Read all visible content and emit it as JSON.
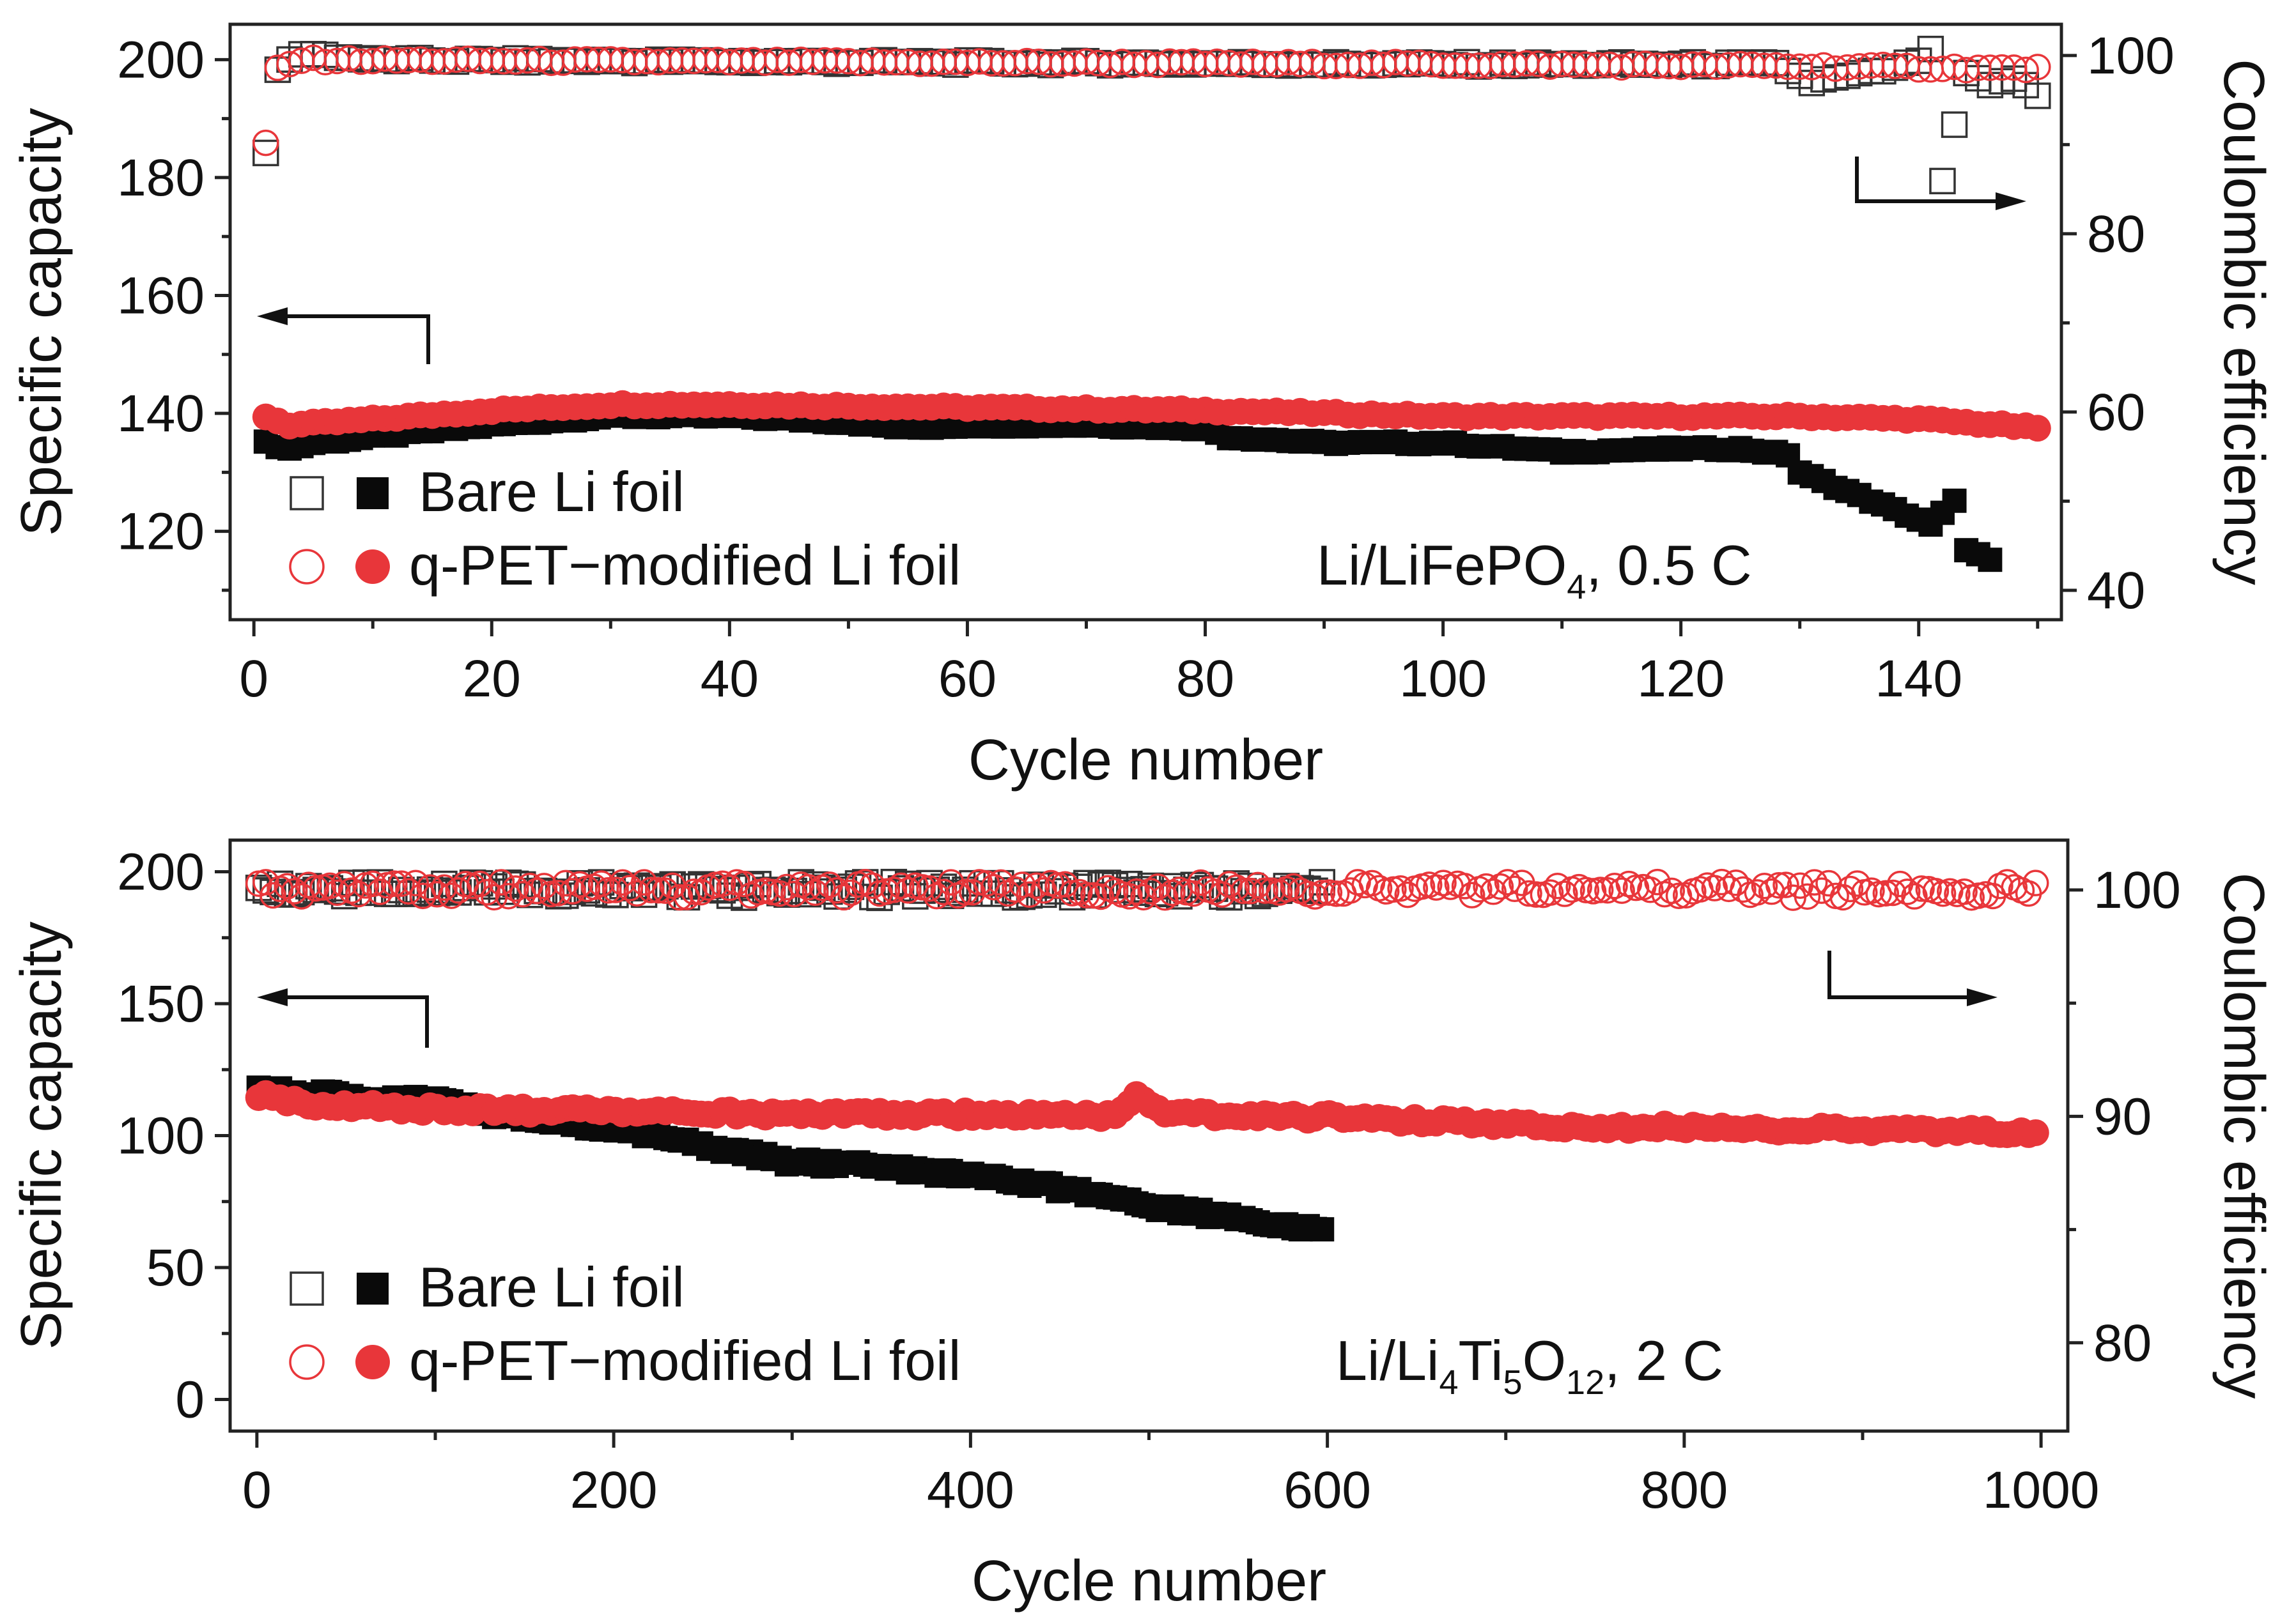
{
  "chart_data": [
    {
      "type": "scatter",
      "panel": "top",
      "xlabel": "Cycle number",
      "ylabel_left": "Specific capacity",
      "ylabel_right": "Coulombic efficiency",
      "xlim": [
        -2,
        152
      ],
      "ylim_left": [
        105,
        206
      ],
      "ylim_right": [
        36.7,
        103.5
      ],
      "x_ticks": [
        0,
        20,
        40,
        60,
        80,
        100,
        120,
        140
      ],
      "y_left_ticks": [
        120,
        140,
        160,
        180,
        200
      ],
      "y_right_ticks": [
        40,
        60,
        80,
        100
      ],
      "annotation": {
        "main": "Li/LiFePO",
        "sub": "4",
        "tail": ", 0.5 C"
      },
      "legend": [
        {
          "label": "Bare Li foil",
          "color": "#0a0a0a"
        },
        {
          "label": "q-PET−modified Li foil",
          "color": "#e8363a"
        }
      ],
      "series": [
        {
          "name": "Bare Li foil – specific capacity",
          "axis": "left",
          "marker": "filled-square",
          "color": "#0a0a0a",
          "x_range": [
            1,
            146
          ],
          "points": [
            [
              1,
              135
            ],
            [
              3,
              134
            ],
            [
              5,
              135
            ],
            [
              10,
              136
            ],
            [
              20,
              138
            ],
            [
              30,
              139.5
            ],
            [
              40,
              139.5
            ],
            [
              50,
              138.5
            ],
            [
              55,
              137.5
            ],
            [
              60,
              138
            ],
            [
              70,
              138
            ],
            [
              80,
              137.5
            ],
            [
              82,
              136
            ],
            [
              90,
              135
            ],
            [
              100,
              135
            ],
            [
              110,
              133.5
            ],
            [
              120,
              134
            ],
            [
              125,
              134
            ],
            [
              129,
              133
            ],
            [
              130,
              130
            ],
            [
              135,
              126
            ],
            [
              140,
              122
            ],
            [
              141,
              121
            ],
            [
              143,
              125
            ],
            [
              144,
              117
            ],
            [
              146,
              115
            ]
          ]
        },
        {
          "name": "q-PET−modified Li foil – specific capacity",
          "axis": "left",
          "marker": "filled-circle",
          "color": "#e8363a",
          "x_range": [
            1,
            150
          ],
          "points": [
            [
              1,
              139.5
            ],
            [
              3,
              138
            ],
            [
              10,
              139
            ],
            [
              20,
              140.5
            ],
            [
              30,
              141.5
            ],
            [
              40,
              141.5
            ],
            [
              60,
              141
            ],
            [
              80,
              140.5
            ],
            [
              100,
              139.5
            ],
            [
              120,
              139.5
            ],
            [
              130,
              139.5
            ],
            [
              140,
              139
            ],
            [
              147,
              138
            ],
            [
              150,
              137.5
            ]
          ]
        },
        {
          "name": "Bare Li foil – Coulombic efficiency",
          "axis": "right",
          "marker": "open-square",
          "color": "#333333",
          "x_range": [
            1,
            150
          ],
          "points": [
            [
              1,
              89
            ],
            [
              2,
              98.5
            ],
            [
              4,
              100.3
            ],
            [
              10,
              99.5
            ],
            [
              60,
              99.2
            ],
            [
              100,
              99
            ],
            [
              128,
              99
            ],
            [
              131,
              97
            ],
            [
              138,
              98.5
            ],
            [
              140,
              99.5
            ],
            [
              141,
              100.5
            ],
            [
              142,
              86
            ],
            [
              144,
              98
            ],
            [
              146,
              96.5
            ],
            [
              148,
              97.5
            ],
            [
              150,
              95.5
            ]
          ]
        },
        {
          "name": "q-PET−modified Li foil – Coulombic efficiency",
          "axis": "right",
          "marker": "open-circle",
          "color": "#e8363a",
          "x_range": [
            1,
            150
          ],
          "points": [
            [
              1,
              90
            ],
            [
              2,
              98.5
            ],
            [
              4,
              99.5
            ],
            [
              20,
              99.4
            ],
            [
              60,
              99.2
            ],
            [
              100,
              99
            ],
            [
              130,
              98.8
            ],
            [
              150,
              98.5
            ]
          ]
        }
      ]
    },
    {
      "type": "scatter",
      "panel": "bottom",
      "xlabel": "Cycle number",
      "ylabel_left": "Specific capacity",
      "ylabel_right": "Coulombic efficiency",
      "xlim": [
        -15,
        1015
      ],
      "ylim_left": [
        -12,
        212
      ],
      "ylim_right": [
        76.1,
        102.2
      ],
      "x_ticks": [
        0,
        200,
        400,
        600,
        800,
        1000
      ],
      "y_left_ticks": [
        0,
        50,
        100,
        150,
        200
      ],
      "y_right_ticks": [
        80,
        90,
        100
      ],
      "annotation": {
        "main": "Li/Li",
        "sub1": "4",
        "mid1": "Ti",
        "sub2": "5",
        "mid2": "O",
        "sub3": "12",
        "tail": ", 2 C"
      },
      "legend": [
        {
          "label": "Bare Li foil",
          "color": "#0a0a0a"
        },
        {
          "label": "q-PET−modified Li foil",
          "color": "#e8363a"
        }
      ],
      "series": [
        {
          "name": "Bare Li foil – specific capacity",
          "axis": "left",
          "marker": "filled-square",
          "color": "#0a0a0a",
          "x_range": [
            1,
            600
          ],
          "points": [
            [
              1,
              117
            ],
            [
              50,
              115
            ],
            [
              100,
              113
            ],
            [
              150,
              106
            ],
            [
              200,
              103
            ],
            [
              240,
              98
            ],
            [
              300,
              90
            ],
            [
              350,
              88
            ],
            [
              400,
              85
            ],
            [
              450,
              80
            ],
            [
              500,
              73
            ],
            [
              550,
              69
            ],
            [
              600,
              63
            ]
          ]
        },
        {
          "name": "q-PET−modified Li foil – specific capacity",
          "axis": "left",
          "marker": "filled-circle",
          "color": "#e8363a",
          "x_range": [
            1,
            1000
          ],
          "points": [
            [
              1,
              115
            ],
            [
              30,
              112
            ],
            [
              100,
              110
            ],
            [
              200,
              109
            ],
            [
              300,
              108
            ],
            [
              400,
              108
            ],
            [
              480,
              107
            ],
            [
              495,
              116
            ],
            [
              510,
              108
            ],
            [
              600,
              107
            ],
            [
              700,
              104
            ],
            [
              800,
              103
            ],
            [
              900,
              102
            ],
            [
              1000,
              101
            ]
          ]
        },
        {
          "name": "Bare Li foil – Coulombic efficiency",
          "axis": "right",
          "marker": "open-square",
          "color": "#333333",
          "x_range": [
            1,
            600
          ],
          "points": [
            [
              1,
              100
            ],
            [
              100,
              100
            ],
            [
              200,
              100
            ],
            [
              300,
              100
            ],
            [
              400,
              100
            ],
            [
              500,
              100
            ],
            [
              600,
              100
            ]
          ]
        },
        {
          "name": "q-PET−modified Li foil – Coulombic efficiency",
          "axis": "right",
          "marker": "open-circle",
          "color": "#e8363a",
          "x_range": [
            1,
            1000
          ],
          "points": [
            [
              1,
              100
            ],
            [
              250,
              100
            ],
            [
              500,
              100
            ],
            [
              750,
              100
            ],
            [
              1000,
              100
            ]
          ]
        }
      ]
    }
  ]
}
